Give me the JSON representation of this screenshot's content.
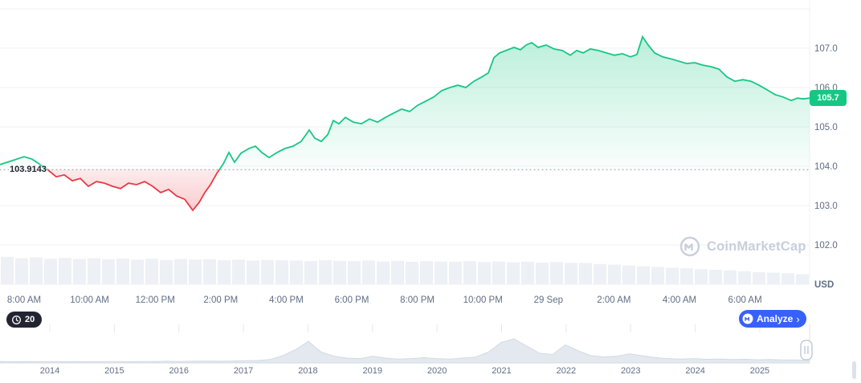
{
  "price_badge": {
    "value": "105.7",
    "color": "#16c784"
  },
  "open_label": "103.9143",
  "watermark": {
    "text": "CoinMarketCap"
  },
  "history_badge": {
    "count": "20"
  },
  "analyze_button": {
    "label": "Analyze",
    "chevron": "›"
  },
  "colors": {
    "green": "#16c784",
    "red": "#ea3943",
    "blue": "#3861fb",
    "axis_text": "#616e85",
    "grid": "#eff2f5",
    "volume": "#edf0f5",
    "watermark": "#c8cfdc",
    "dark_badge": "#222531",
    "baseline_dots": "#8c96a8",
    "sparkline_fill": "#e4e9f0",
    "sparkline_stroke": "#d3dae4",
    "handle_border": "#c3ccd9"
  },
  "chart_data": {
    "type": "line",
    "title": "",
    "y_axis_unit": "USD",
    "ylim": [
      101,
      108
    ],
    "y_ticks": [
      107,
      106,
      105,
      104,
      103,
      102
    ],
    "x_ticks": [
      "8:00 AM",
      "10:00 AM",
      "12:00 PM",
      "2:00 PM",
      "4:00 PM",
      "6:00 PM",
      "8:00 PM",
      "10:00 PM",
      "29 Sep",
      "2:00 AM",
      "4:00 AM",
      "6:00 AM"
    ],
    "open_price": 103.9143,
    "last_price": 105.73,
    "x_domain": [
      0,
      1008
    ],
    "prices": [
      [
        0,
        104.04
      ],
      [
        15,
        104.14
      ],
      [
        30,
        104.24
      ],
      [
        40,
        104.18
      ],
      [
        50,
        104.04
      ],
      [
        60,
        103.9
      ],
      [
        70,
        103.73
      ],
      [
        80,
        103.78
      ],
      [
        90,
        103.63
      ],
      [
        100,
        103.69
      ],
      [
        110,
        103.49
      ],
      [
        120,
        103.61
      ],
      [
        130,
        103.57
      ],
      [
        140,
        103.49
      ],
      [
        150,
        103.43
      ],
      [
        160,
        103.57
      ],
      [
        170,
        103.53
      ],
      [
        180,
        103.61
      ],
      [
        190,
        103.49
      ],
      [
        200,
        103.33
      ],
      [
        210,
        103.41
      ],
      [
        220,
        103.24
      ],
      [
        230,
        103.16
      ],
      [
        240,
        102.88
      ],
      [
        248,
        103.08
      ],
      [
        255,
        103.33
      ],
      [
        262,
        103.53
      ],
      [
        270,
        103.82
      ],
      [
        278,
        104.06
      ],
      [
        285,
        104.35
      ],
      [
        292,
        104.1
      ],
      [
        300,
        104.33
      ],
      [
        310,
        104.45
      ],
      [
        318,
        104.51
      ],
      [
        326,
        104.35
      ],
      [
        335,
        104.22
      ],
      [
        345,
        104.35
      ],
      [
        355,
        104.45
      ],
      [
        365,
        104.51
      ],
      [
        375,
        104.63
      ],
      [
        385,
        104.92
      ],
      [
        392,
        104.71
      ],
      [
        400,
        104.63
      ],
      [
        408,
        104.8
      ],
      [
        415,
        105.16
      ],
      [
        422,
        105.08
      ],
      [
        430,
        105.24
      ],
      [
        440,
        105.12
      ],
      [
        450,
        105.08
      ],
      [
        460,
        105.2
      ],
      [
        470,
        105.12
      ],
      [
        480,
        105.24
      ],
      [
        490,
        105.35
      ],
      [
        500,
        105.45
      ],
      [
        510,
        105.39
      ],
      [
        520,
        105.55
      ],
      [
        530,
        105.65
      ],
      [
        540,
        105.76
      ],
      [
        550,
        105.92
      ],
      [
        560,
        106.0
      ],
      [
        570,
        106.06
      ],
      [
        580,
        106.0
      ],
      [
        590,
        106.16
      ],
      [
        600,
        106.27
      ],
      [
        608,
        106.37
      ],
      [
        615,
        106.76
      ],
      [
        622,
        106.88
      ],
      [
        630,
        106.94
      ],
      [
        640,
        107.02
      ],
      [
        648,
        106.96
      ],
      [
        655,
        107.08
      ],
      [
        662,
        107.14
      ],
      [
        670,
        107.02
      ],
      [
        680,
        107.08
      ],
      [
        690,
        106.98
      ],
      [
        700,
        106.94
      ],
      [
        710,
        106.82
      ],
      [
        718,
        106.94
      ],
      [
        726,
        106.88
      ],
      [
        735,
        106.98
      ],
      [
        745,
        106.94
      ],
      [
        755,
        106.88
      ],
      [
        765,
        106.82
      ],
      [
        775,
        106.86
      ],
      [
        785,
        106.78
      ],
      [
        793,
        106.84
      ],
      [
        800,
        107.29
      ],
      [
        807,
        107.08
      ],
      [
        815,
        106.88
      ],
      [
        825,
        106.78
      ],
      [
        835,
        106.73
      ],
      [
        845,
        106.67
      ],
      [
        855,
        106.61
      ],
      [
        865,
        106.63
      ],
      [
        875,
        106.57
      ],
      [
        885,
        106.53
      ],
      [
        895,
        106.47
      ],
      [
        905,
        106.27
      ],
      [
        915,
        106.16
      ],
      [
        925,
        106.2
      ],
      [
        935,
        106.16
      ],
      [
        945,
        106.06
      ],
      [
        955,
        105.94
      ],
      [
        965,
        105.82
      ],
      [
        975,
        105.76
      ],
      [
        985,
        105.67
      ],
      [
        993,
        105.73
      ],
      [
        1000,
        105.71
      ],
      [
        1008,
        105.73
      ]
    ],
    "volume": [
      95,
      90,
      93,
      88,
      91,
      87,
      90,
      86,
      89,
      85,
      88,
      84,
      87,
      85,
      86,
      83,
      85,
      82,
      84,
      83,
      82,
      80,
      83,
      81,
      80,
      82,
      79,
      81,
      78,
      80,
      79,
      78,
      80,
      77,
      79,
      76,
      78,
      75,
      77,
      74,
      73,
      70,
      68,
      65,
      62,
      60,
      57,
      55,
      52,
      50,
      48,
      45,
      42,
      40,
      38,
      35
    ],
    "range_selector": {
      "years": [
        "2014",
        "2015",
        "2016",
        "2017",
        "2018",
        "2019",
        "2020",
        "2021",
        "2022",
        "2023",
        "2024",
        "2025"
      ],
      "sparkline": [
        6,
        5,
        6,
        5,
        6,
        5,
        6,
        5,
        6,
        6,
        5,
        6,
        6,
        7,
        6,
        7,
        8,
        7,
        8,
        9,
        10,
        14,
        30,
        55,
        90,
        45,
        28,
        20,
        18,
        28,
        20,
        16,
        18,
        22,
        18,
        16,
        20,
        24,
        45,
        85,
        100,
        70,
        40,
        35,
        75,
        50,
        30,
        25,
        28,
        38,
        30,
        22,
        18,
        16,
        18,
        15,
        16,
        14,
        15,
        13,
        14,
        12,
        12,
        11
      ]
    }
  }
}
